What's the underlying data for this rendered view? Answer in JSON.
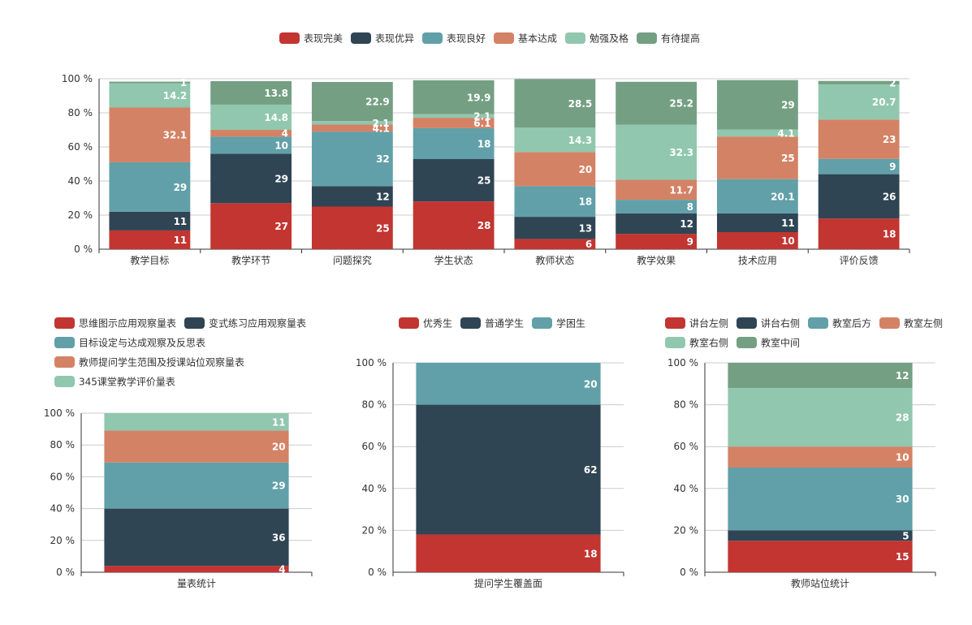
{
  "colors": {
    "red": "#c23531",
    "navy": "#2f4554",
    "teal": "#61a0a8",
    "orange": "#d48265",
    "mint": "#91c7ae",
    "green": "#749f83",
    "axis": "#333333",
    "grid": "#cccccc"
  },
  "chart_data": [
    {
      "type": "bar",
      "stacked": true,
      "legend_position": "top-center",
      "categories": [
        "教学目标",
        "教学环节",
        "问题探究",
        "学生状态",
        "教师状态",
        "教学效果",
        "技术应用",
        "评价反馈"
      ],
      "ylim": [
        0,
        100
      ],
      "y_ticks": [
        "0 %",
        "20 %",
        "40 %",
        "60 %",
        "80 %",
        "100 %"
      ],
      "grid": true,
      "series": [
        {
          "name": "表现完美",
          "color": "#c23531",
          "values": [
            11,
            27,
            25,
            28,
            6,
            9,
            10,
            18
          ]
        },
        {
          "name": "表现优异",
          "color": "#2f4554",
          "values": [
            11,
            29,
            12,
            25,
            13,
            12,
            11,
            26
          ]
        },
        {
          "name": "表现良好",
          "color": "#61a0a8",
          "values": [
            29,
            10,
            32,
            18,
            18,
            8,
            20.1,
            9
          ]
        },
        {
          "name": "基本达成",
          "color": "#d48265",
          "values": [
            32.1,
            4,
            4.1,
            6.1,
            20,
            11.7,
            25,
            23
          ]
        },
        {
          "name": "勉强及格",
          "color": "#91c7ae",
          "values": [
            14.2,
            14.8,
            2.1,
            2.1,
            14.3,
            32.3,
            4.1,
            20.7
          ]
        },
        {
          "name": "有待提高",
          "color": "#749f83",
          "values": [
            1,
            13.8,
            22.9,
            19.9,
            28.5,
            25.2,
            29,
            2
          ]
        }
      ]
    },
    {
      "type": "bar",
      "stacked": true,
      "legend_position": "top-left",
      "categories": [
        "量表统计"
      ],
      "ylim": [
        0,
        100
      ],
      "y_ticks": [
        "0 %",
        "20 %",
        "40 %",
        "60 %",
        "80 %",
        "100 %"
      ],
      "grid": true,
      "series": [
        {
          "name": "思维图示应用观察量表",
          "color": "#c23531",
          "values": [
            4
          ]
        },
        {
          "name": "变式练习应用观察量表",
          "color": "#2f4554",
          "values": [
            36
          ]
        },
        {
          "name": "目标设定与达成观察及反思表",
          "color": "#61a0a8",
          "values": [
            29
          ]
        },
        {
          "name": "教师提问学生范围及授课站位观察量表",
          "color": "#d48265",
          "values": [
            20
          ]
        },
        {
          "name": "345课堂教学评价量表",
          "color": "#91c7ae",
          "values": [
            11
          ]
        }
      ]
    },
    {
      "type": "bar",
      "stacked": true,
      "legend_position": "top-center",
      "categories": [
        "提问学生覆盖面"
      ],
      "ylim": [
        0,
        100
      ],
      "y_ticks": [
        "0 %",
        "20 %",
        "40 %",
        "60 %",
        "80 %",
        "100 %"
      ],
      "grid": true,
      "series": [
        {
          "name": "优秀生",
          "color": "#c23531",
          "values": [
            18
          ]
        },
        {
          "name": "普通学生",
          "color": "#2f4554",
          "values": [
            62
          ]
        },
        {
          "name": "学困生",
          "color": "#61a0a8",
          "values": [
            20
          ]
        }
      ]
    },
    {
      "type": "bar",
      "stacked": true,
      "legend_position": "top-center",
      "categories": [
        "教师站位统计"
      ],
      "ylim": [
        0,
        100
      ],
      "y_ticks": [
        "0 %",
        "20 %",
        "40 %",
        "60 %",
        "80 %",
        "100 %"
      ],
      "grid": true,
      "series": [
        {
          "name": "讲台左侧",
          "color": "#c23531",
          "values": [
            15
          ]
        },
        {
          "name": "讲台右侧",
          "color": "#2f4554",
          "values": [
            5
          ]
        },
        {
          "name": "教室后方",
          "color": "#61a0a8",
          "values": [
            30
          ]
        },
        {
          "name": "教室左侧",
          "color": "#d48265",
          "values": [
            10
          ]
        },
        {
          "name": "教室右侧",
          "color": "#91c7ae",
          "values": [
            28
          ]
        },
        {
          "name": "教室中间",
          "color": "#749f83",
          "values": [
            12
          ]
        }
      ]
    }
  ]
}
